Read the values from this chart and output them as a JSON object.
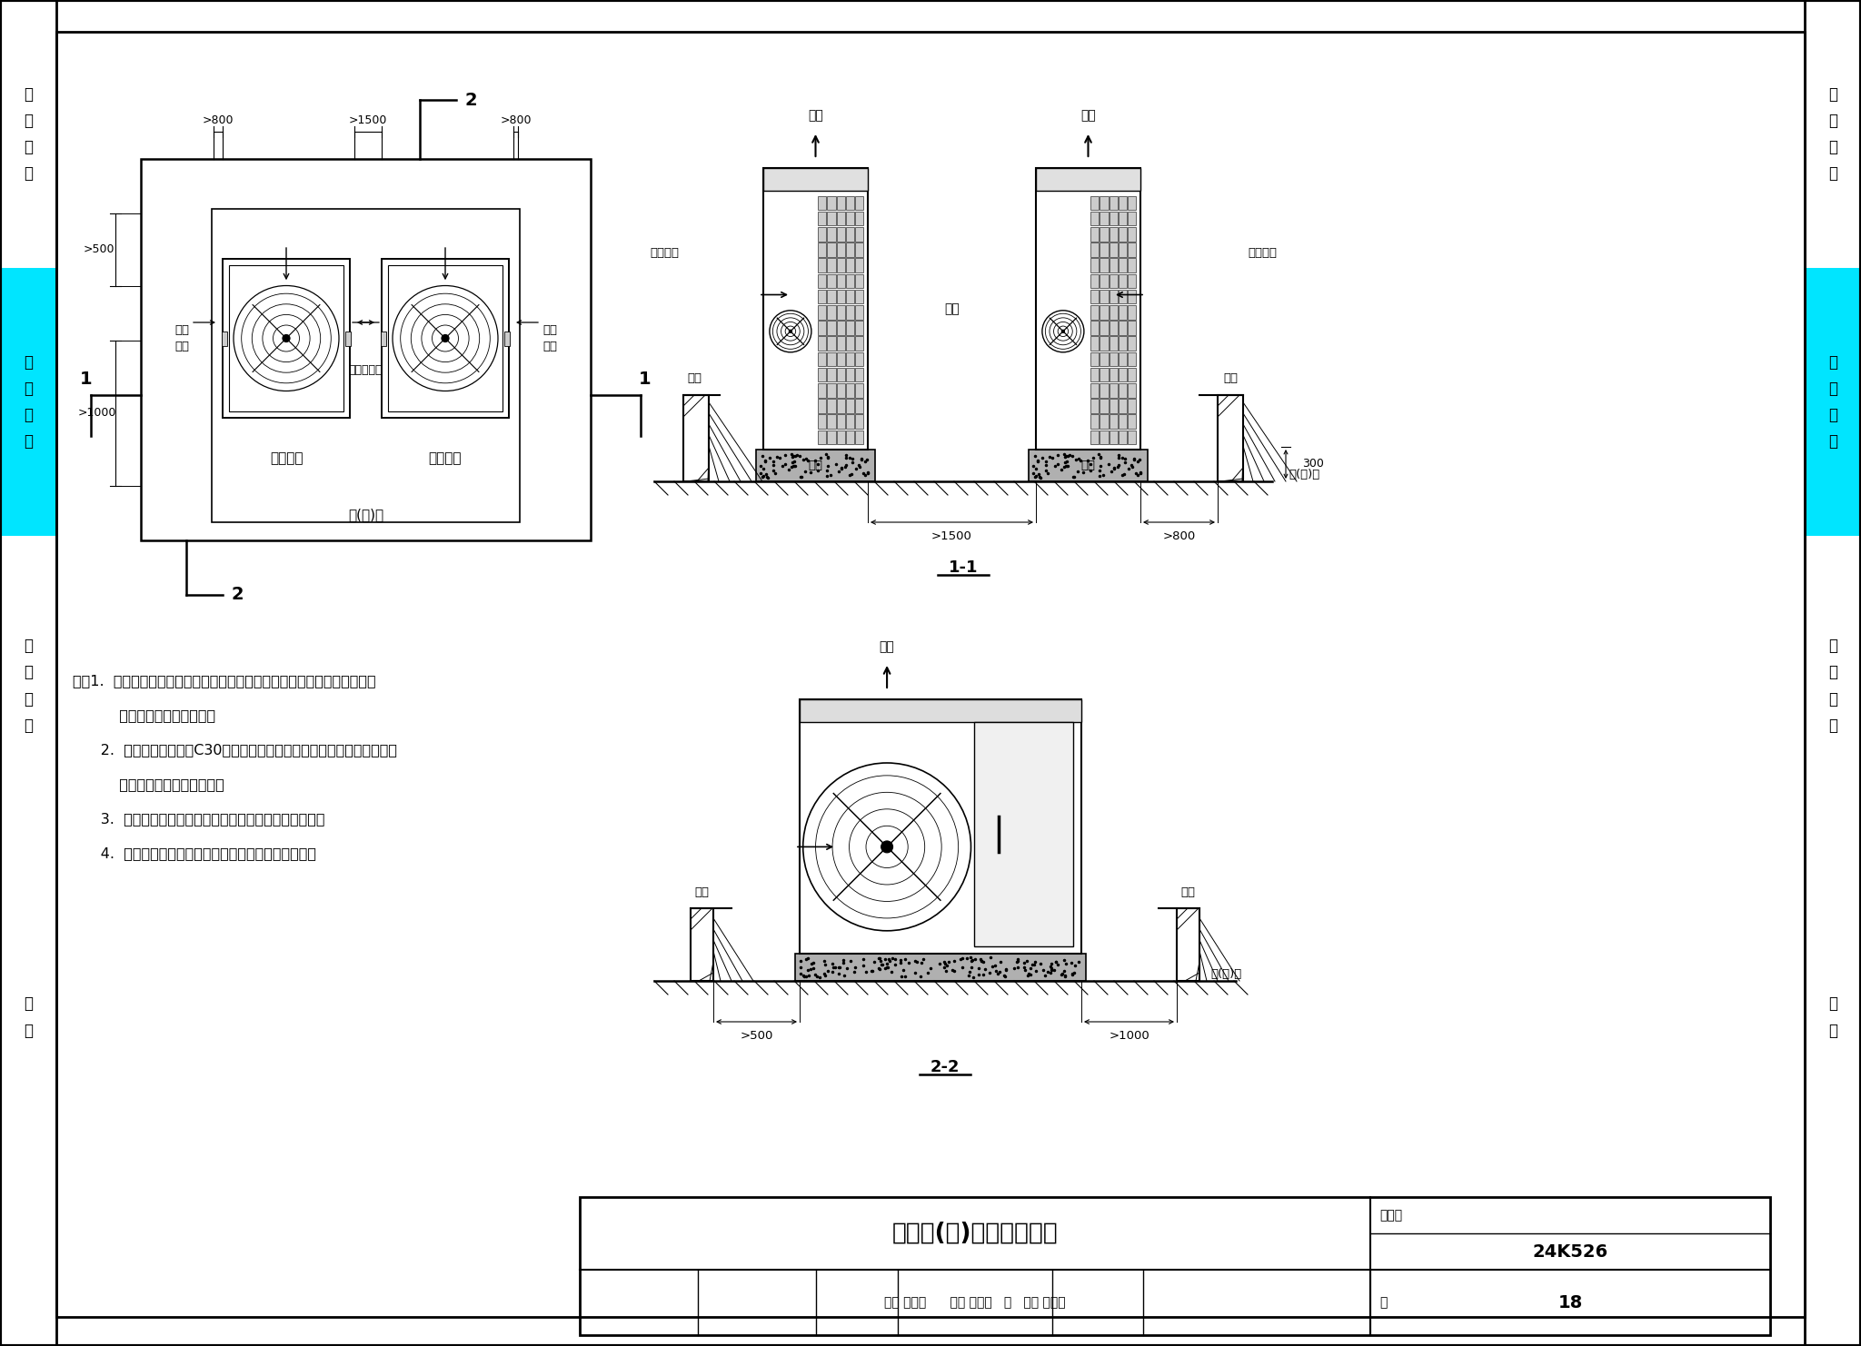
{
  "title": "机组屋(地)面安装示意图",
  "figure_number": "24K526",
  "page": "18",
  "bg_color": "#ffffff",
  "notes_lines": [
    "注：1.  多台室外机集中布置时，室外机组应与建筑物墙壁保持一定距离，避",
    "          免影响室外机通风换热。",
    "      2.  室外机基础应采用C30及以上混凝土基础，或采用角钢支架基础；基",
    "          础表面需找平，连接牢固。",
    "      3.  室外机布置区域应有良好的排水措施或防积雪措施。",
    "      4.  热泵室外机与基础间应设置耐候性良好的减振器。"
  ],
  "left_sections": [
    [
      0,
      295,
      "white",
      "系\n统\n设\n计"
    ],
    [
      295,
      590,
      "#00e5ff",
      "施\n工\n安\n装"
    ],
    [
      590,
      920,
      "white",
      "工\n程\n实\n例"
    ],
    [
      920,
      1320,
      "white",
      "附\n录"
    ]
  ],
  "right_sections": [
    [
      0,
      295,
      "white",
      "系\n统\n设\n计"
    ],
    [
      295,
      590,
      "#00e5ff",
      "施\n工\n安\n装"
    ],
    [
      590,
      920,
      "white",
      "工\n程\n实\n例"
    ],
    [
      920,
      1320,
      "white",
      "附\n录"
    ]
  ]
}
